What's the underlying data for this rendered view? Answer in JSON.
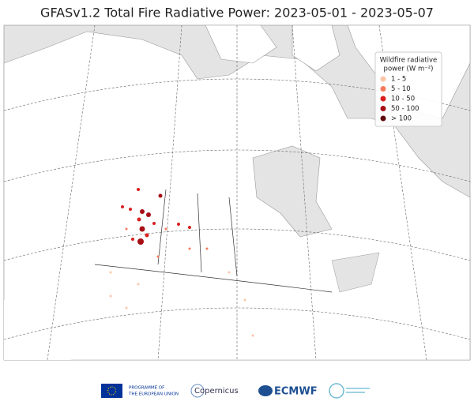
{
  "title": "GFASv1.2 Total Fire Radiative Power: 2023-05-01 - 2023-05-07",
  "legend": {
    "title_lines": [
      "Wildfire radiative",
      "power (W m⁻²)"
    ],
    "items": [
      {
        "label": "1 - 5",
        "color": "#fcc5a8"
      },
      {
        "label": "5 - 10",
        "color": "#f47a5c"
      },
      {
        "label": "10 - 50",
        "color": "#d8201f"
      },
      {
        "label": "50 - 100",
        "color": "#a50f15"
      },
      {
        "label": "> 100",
        "color": "#5e0b0e"
      }
    ]
  },
  "footer": {
    "eu_lines": [
      "PROGRAMME OF",
      "THE EUROPEAN UNION"
    ],
    "copernicus": "Copernicus",
    "ecmwf": "ECMWF"
  }
}
